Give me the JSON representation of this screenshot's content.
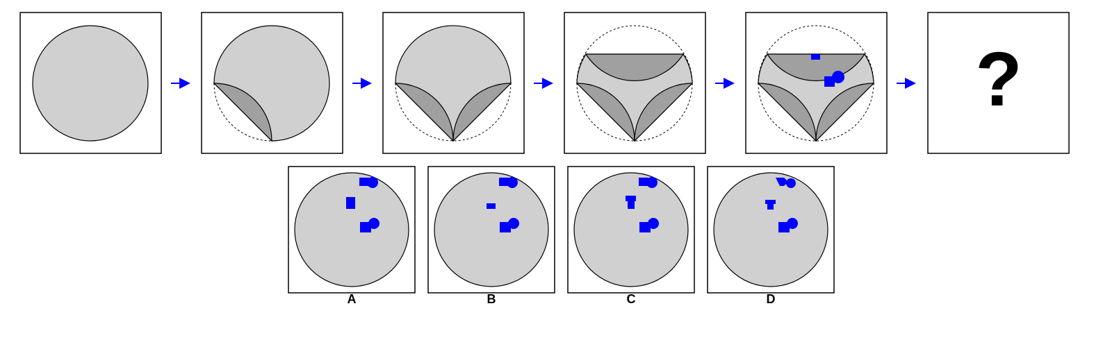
{
  "puzzle": {
    "question_mark": "?",
    "options": [
      {
        "letter": "A"
      },
      {
        "letter": "B"
      },
      {
        "letter": "C"
      },
      {
        "letter": "D"
      }
    ]
  },
  "colors": {
    "light_gray": "#d0d0d0",
    "dark_gray": "#a0a0a0",
    "blue": "#0000ff",
    "stroke": "#000000",
    "arrow": "#0000ff"
  }
}
